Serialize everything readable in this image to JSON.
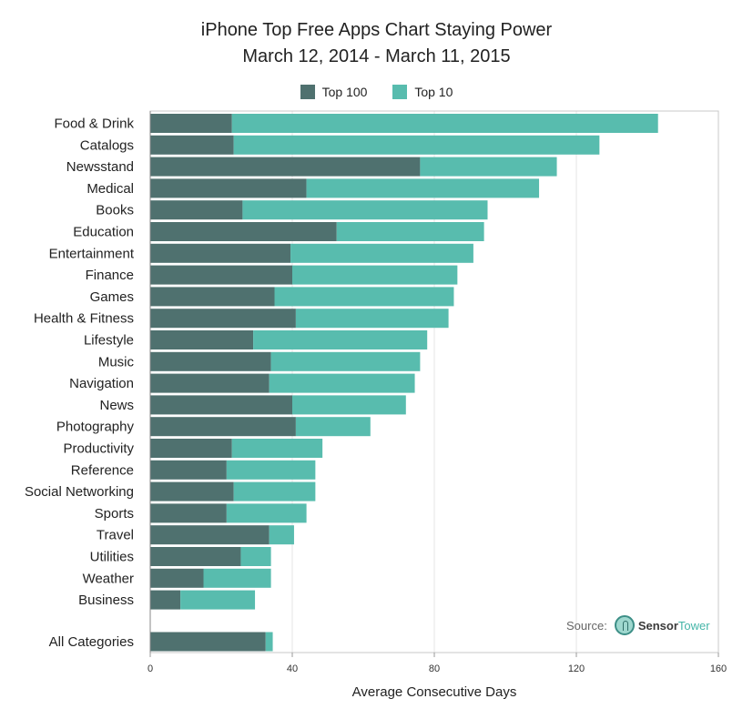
{
  "colors": {
    "top100": "#4f716f",
    "top10": "#58bcae",
    "grid": "#e5e5e5",
    "axis": "#999999"
  },
  "source": {
    "label": "Source:",
    "brand_a": "Sensor",
    "brand_b": "Tower",
    "logo_icon": "sensor-tower-logo-icon"
  },
  "chart_data": {
    "type": "bar",
    "orientation": "horizontal",
    "stacked": true,
    "title": "iPhone Top Free Apps Chart Staying Power",
    "subtitle": "March 12, 2014 - March 11, 2015",
    "xlabel": "Average Consecutive Days",
    "ylabel": "",
    "xlim": [
      0,
      160
    ],
    "xticks": [
      0,
      40,
      80,
      120,
      160
    ],
    "grid": true,
    "legend_position": "top-center",
    "categories": [
      "Food & Drink",
      "Catalogs",
      "Newsstand",
      "Medical",
      "Books",
      "Education",
      "Entertainment",
      "Finance",
      "Games",
      "Health & Fitness",
      "Lifestyle",
      "Music",
      "Navigation",
      "News",
      "Photography",
      "Productivity",
      "Reference",
      "Social Networking",
      "Sports",
      "Travel",
      "Utilities",
      "Weather",
      "Business",
      "All Categories"
    ],
    "series": [
      {
        "name": "Top 100",
        "values": [
          23,
          23.5,
          76,
          44,
          26,
          52.5,
          39.5,
          40,
          35,
          41,
          29,
          34,
          33.5,
          40,
          41,
          23,
          21.5,
          23.5,
          21.5,
          33.5,
          25.5,
          15,
          8.5,
          32.5
        ]
      },
      {
        "name": "Top 10",
        "values": [
          120,
          103,
          38.5,
          65.5,
          69,
          41.5,
          51.5,
          46.5,
          50.5,
          43,
          49,
          42,
          41,
          32,
          21,
          25.5,
          25,
          23,
          22.5,
          7,
          8.5,
          19,
          21,
          2
        ]
      }
    ]
  }
}
